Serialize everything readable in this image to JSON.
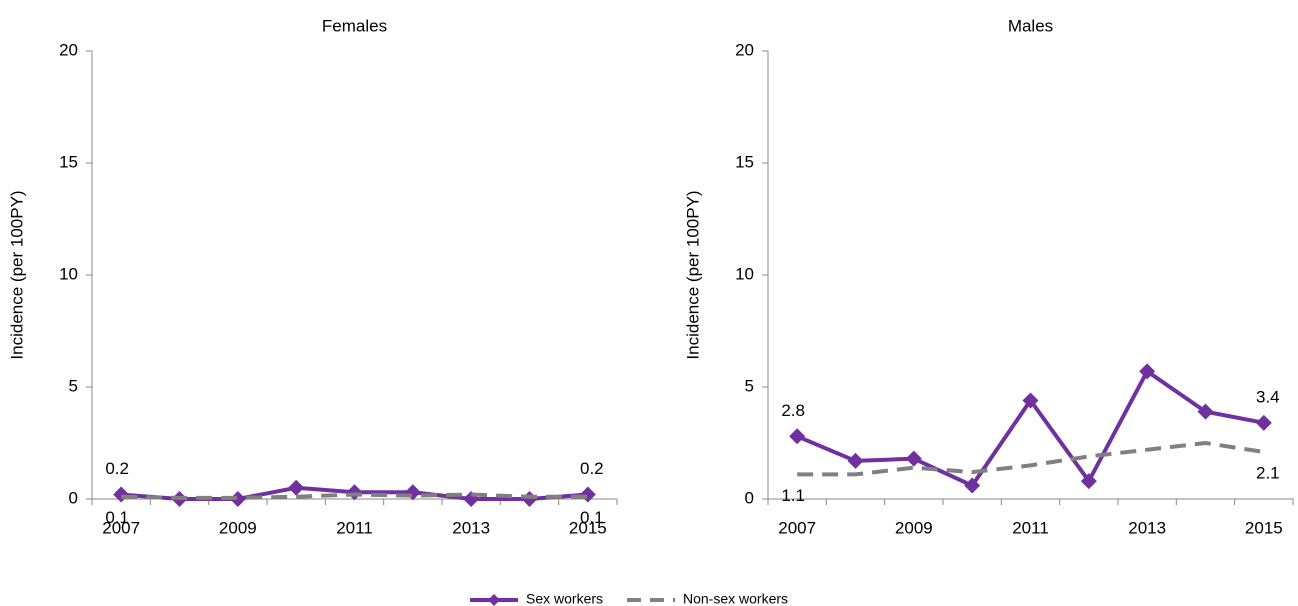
{
  "chart_data": [
    {
      "type": "line",
      "title": "Females",
      "y_label": "Incidence (per 100PY)",
      "categories": [
        "2007",
        null,
        "2009",
        null,
        "2011",
        null,
        "2013",
        null,
        "2015"
      ],
      "ylim": [
        0,
        20
      ],
      "yticks": [
        0,
        5,
        10,
        15,
        20
      ],
      "series": [
        {
          "name": "Sex workers",
          "color": "#7030a0",
          "line_style": "solid",
          "marker": "diamond",
          "values": [
            0.2,
            0,
            0,
            0.5,
            0.3,
            0.3,
            0,
            0,
            0.2
          ],
          "value_labels": [
            "0.2",
            null,
            null,
            null,
            null,
            null,
            null,
            null,
            "0.2"
          ]
        },
        {
          "name": "Non-sex workers",
          "color": "#808080",
          "line_style": "dashed",
          "marker": "none",
          "values": [
            0.1,
            0.05,
            0.05,
            0.1,
            0.2,
            0.15,
            0.2,
            0.1,
            0.1
          ],
          "value_labels": [
            "0.1",
            null,
            null,
            null,
            null,
            null,
            null,
            null,
            "0.1"
          ]
        }
      ]
    },
    {
      "type": "line",
      "title": "Males",
      "y_label": "Incidence (per 100PY)",
      "categories": [
        "2007",
        null,
        "2009",
        null,
        "2011",
        null,
        "2013",
        null,
        "2015"
      ],
      "ylim": [
        0,
        20
      ],
      "yticks": [
        0,
        5,
        10,
        15,
        20
      ],
      "series": [
        {
          "name": "Sex workers",
          "color": "#7030a0",
          "line_style": "solid",
          "marker": "diamond",
          "values": [
            2.8,
            1.7,
            1.8,
            0.6,
            4.4,
            0.8,
            5.7,
            3.9,
            3.4
          ],
          "value_labels": [
            "2.8",
            null,
            null,
            null,
            null,
            null,
            null,
            null,
            "3.4"
          ]
        },
        {
          "name": "Non-sex workers",
          "color": "#808080",
          "line_style": "dashed",
          "marker": "none",
          "values": [
            1.1,
            1.1,
            1.4,
            1.2,
            1.5,
            1.9,
            2.2,
            2.5,
            2.1
          ],
          "value_labels": [
            "1.1",
            null,
            null,
            null,
            null,
            null,
            null,
            null,
            "2.1"
          ]
        }
      ]
    }
  ]
}
